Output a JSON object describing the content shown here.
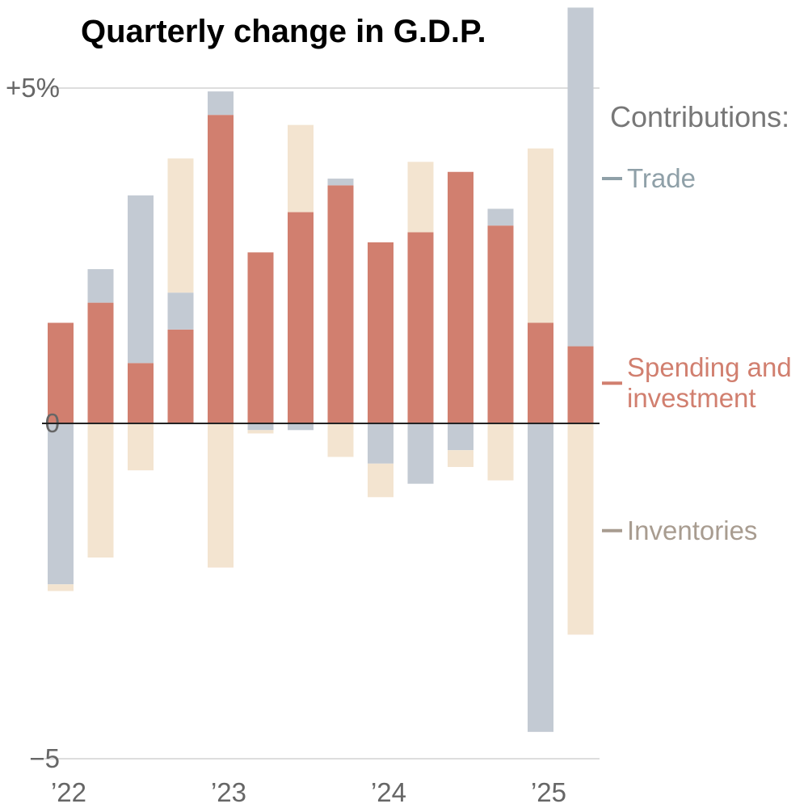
{
  "chart_data": {
    "type": "bar",
    "stacked": true,
    "title": "Quarterly change in G.D.P.",
    "xlabel": "",
    "ylabel": "",
    "ylim": [
      -5,
      5
    ],
    "y_ticks": [
      {
        "value": 5,
        "label": "+5%"
      },
      {
        "value": 0,
        "label": "0"
      },
      {
        "value": -5,
        "label": "−5"
      }
    ],
    "x_ticks": [
      {
        "index": 0,
        "label": "’22"
      },
      {
        "index": 4,
        "label": "’23"
      },
      {
        "index": 8,
        "label": "’24"
      },
      {
        "index": 12,
        "label": "’25"
      }
    ],
    "categories": [
      "2022 Q1",
      "2022 Q2",
      "2022 Q3",
      "2022 Q4",
      "2023 Q1",
      "2023 Q2",
      "2023 Q3",
      "2023 Q4",
      "2024 Q1",
      "2024 Q2",
      "2024 Q3",
      "2024 Q4",
      "2025 Q1",
      "2025 Q2"
    ],
    "legend_title": "Contributions:",
    "series": [
      {
        "key": "spending",
        "name": "Spending and investment",
        "label_lines": [
          "Spending and",
          "investment"
        ],
        "color": "#d17f6f",
        "label_color": "#d17f6f",
        "legend_value": 0.6,
        "values": [
          1.5,
          1.8,
          0.9,
          1.4,
          4.6,
          2.55,
          3.15,
          3.55,
          2.7,
          2.85,
          3.75,
          2.95,
          1.5,
          1.15
        ]
      },
      {
        "key": "trade",
        "name": "Trade",
        "label_lines": [
          "Trade"
        ],
        "color": "#c3cad3",
        "label_color": "#8fa0a8",
        "legend_value": 3.65,
        "values": [
          -2.4,
          0.5,
          2.5,
          0.55,
          0.35,
          -0.1,
          -0.1,
          0.1,
          -0.6,
          -0.9,
          -0.4,
          0.25,
          -4.6,
          5.05
        ]
      },
      {
        "key": "inventories",
        "name": "Inventories",
        "label_lines": [
          "Inventories"
        ],
        "color": "#f3e4d0",
        "label_color": "#a89c90",
        "legend_value": -1.6,
        "values": [
          -0.1,
          -2.0,
          -0.7,
          2.0,
          -2.15,
          -0.05,
          1.3,
          -0.5,
          -0.5,
          1.05,
          -0.25,
          -0.85,
          2.6,
          -3.15
        ]
      }
    ]
  }
}
